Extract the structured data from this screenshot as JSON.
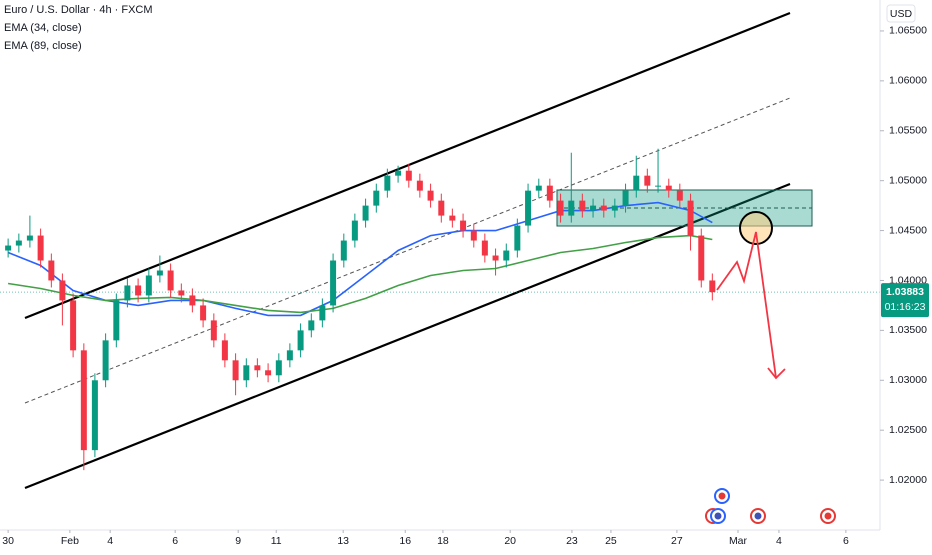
{
  "chart_data": {
    "type": "candlestick",
    "title": "Euro / U.S. Dollar · 4h · FXCM",
    "currency": "USD",
    "grid": false,
    "up_color": "#089981",
    "down_color": "#f23645",
    "xlim": [
      -0.25,
      26.83
    ],
    "ylim": [
      1.015,
      1.0681
    ],
    "xticks": [
      {
        "value": 0,
        "label": "30"
      },
      {
        "value": 1.9,
        "label": "Feb"
      },
      {
        "value": 3.14,
        "label": "4"
      },
      {
        "value": 5.14,
        "label": "6"
      },
      {
        "value": 7.08,
        "label": "9"
      },
      {
        "value": 8.25,
        "label": "11"
      },
      {
        "value": 10.31,
        "label": "13"
      },
      {
        "value": 12.22,
        "label": "16"
      },
      {
        "value": 13.38,
        "label": "18"
      },
      {
        "value": 15.45,
        "label": "20"
      },
      {
        "value": 17.35,
        "label": "23"
      },
      {
        "value": 18.55,
        "label": "25"
      },
      {
        "value": 20.58,
        "label": "27"
      },
      {
        "value": 22.46,
        "label": "Mar"
      },
      {
        "value": 23.72,
        "label": "4"
      },
      {
        "value": 25.78,
        "label": "6"
      }
    ],
    "yticks": [
      {
        "value": 1.02,
        "label": "1.02000"
      },
      {
        "value": 1.025,
        "label": "1.02500"
      },
      {
        "value": 1.03,
        "label": "1.03000"
      },
      {
        "value": 1.035,
        "label": "1.03500"
      },
      {
        "value": 1.04,
        "label": "1.04000"
      },
      {
        "value": 1.045,
        "label": "1.04500"
      },
      {
        "value": 1.05,
        "label": "1.05000"
      },
      {
        "value": 1.055,
        "label": "1.05500"
      },
      {
        "value": 1.06,
        "label": "1.06000"
      },
      {
        "value": 1.065,
        "label": "1.06500"
      }
    ],
    "x": [
      0,
      0.33,
      0.67,
      1,
      1.33,
      1.67,
      2,
      2.33,
      2.67,
      3,
      3.33,
      3.67,
      4,
      4.33,
      4.67,
      5,
      5.33,
      5.67,
      6,
      6.33,
      6.67,
      7,
      7.33,
      7.67,
      8,
      8.33,
      8.67,
      9,
      9.33,
      9.67,
      10,
      10.33,
      10.67,
      11,
      11.33,
      11.67,
      12,
      12.33,
      12.67,
      13,
      13.33,
      13.67,
      14,
      14.33,
      14.67,
      15,
      15.33,
      15.67,
      16,
      16.33,
      16.67,
      17,
      17.33,
      17.67,
      18,
      18.33,
      18.67,
      19,
      19.33,
      19.67,
      20,
      20.33,
      20.67,
      21,
      21.33,
      21.67
    ],
    "open": [
      1.043,
      1.0435,
      1.044,
      1.0445,
      1.042,
      1.04,
      1.038,
      1.033,
      1.023,
      1.03,
      1.034,
      1.038,
      1.0395,
      1.0385,
      1.0405,
      1.041,
      1.039,
      1.0385,
      1.0375,
      1.036,
      1.034,
      1.032,
      1.03,
      1.0315,
      1.031,
      1.0305,
      1.032,
      1.033,
      1.035,
      1.036,
      1.0375,
      1.042,
      1.044,
      1.046,
      1.0475,
      1.049,
      1.0505,
      1.051,
      1.05,
      1.049,
      1.048,
      1.0465,
      1.046,
      1.045,
      1.044,
      1.0425,
      1.042,
      1.043,
      1.0455,
      1.049,
      1.0495,
      1.048,
      1.0465,
      1.048,
      1.047,
      1.0475,
      1.047,
      1.0475,
      1.049,
      1.0505,
      1.0495,
      1.0495,
      1.049,
      1.048,
      1.0445,
      1.04
    ],
    "high": [
      1.0442,
      1.0447,
      1.0465,
      1.0452,
      1.0427,
      1.0407,
      1.0387,
      1.0337,
      1.0307,
      1.0347,
      1.0387,
      1.0402,
      1.0402,
      1.0412,
      1.0425,
      1.0417,
      1.0397,
      1.0392,
      1.0382,
      1.0367,
      1.0347,
      1.0327,
      1.0322,
      1.0322,
      1.0317,
      1.0327,
      1.0337,
      1.0357,
      1.0367,
      1.0382,
      1.0427,
      1.0447,
      1.0467,
      1.0482,
      1.0497,
      1.0512,
      1.0515,
      1.0517,
      1.0507,
      1.0497,
      1.0487,
      1.0472,
      1.0467,
      1.0457,
      1.0447,
      1.0432,
      1.0437,
      1.0462,
      1.0497,
      1.0502,
      1.0502,
      1.0487,
      1.0528,
      1.0487,
      1.0482,
      1.0482,
      1.0482,
      1.0497,
      1.0525,
      1.0512,
      1.0532,
      1.0502,
      1.0497,
      1.0487,
      1.0452,
      1.0407
    ],
    "low": [
      1.0423,
      1.0428,
      1.0433,
      1.0413,
      1.0393,
      1.0355,
      1.0323,
      1.021,
      1.0223,
      1.0293,
      1.0333,
      1.0373,
      1.0378,
      1.0378,
      1.0398,
      1.0383,
      1.0378,
      1.0368,
      1.0353,
      1.0333,
      1.0313,
      1.0285,
      1.0293,
      1.0303,
      1.0298,
      1.0298,
      1.0313,
      1.0323,
      1.0343,
      1.0353,
      1.0368,
      1.0413,
      1.0433,
      1.0453,
      1.0468,
      1.0483,
      1.0498,
      1.0493,
      1.0483,
      1.0473,
      1.0458,
      1.0453,
      1.0443,
      1.0433,
      1.0418,
      1.0405,
      1.0413,
      1.0423,
      1.0448,
      1.0483,
      1.0473,
      1.0458,
      1.0458,
      1.0463,
      1.0463,
      1.0463,
      1.0463,
      1.0468,
      1.0483,
      1.0488,
      1.0488,
      1.0483,
      1.0473,
      1.043,
      1.0393,
      1.038
    ],
    "close": [
      1.0435,
      1.044,
      1.0445,
      1.042,
      1.04,
      1.038,
      1.033,
      1.023,
      1.03,
      1.034,
      1.038,
      1.0395,
      1.0385,
      1.0405,
      1.041,
      1.039,
      1.0385,
      1.0375,
      1.036,
      1.034,
      1.032,
      1.03,
      1.0315,
      1.031,
      1.0305,
      1.032,
      1.033,
      1.035,
      1.036,
      1.0375,
      1.042,
      1.044,
      1.046,
      1.0475,
      1.049,
      1.0505,
      1.051,
      1.05,
      1.049,
      1.048,
      1.0465,
      1.046,
      1.045,
      1.044,
      1.0425,
      1.042,
      1.043,
      1.0455,
      1.049,
      1.0495,
      1.048,
      1.0465,
      1.048,
      1.047,
      1.0475,
      1.047,
      1.0475,
      1.049,
      1.0505,
      1.0495,
      1.0495,
      1.049,
      1.048,
      1.0445,
      1.04,
      1.03883
    ],
    "last_price": 1.03883,
    "countdown": "01:16:23",
    "ema": [
      {
        "name": "EMA (34, close)",
        "color": "#2962ff",
        "x": [
          0,
          1,
          2,
          3,
          4,
          5,
          6,
          7,
          8,
          9,
          10,
          11,
          12,
          13,
          14,
          15,
          16,
          17,
          18,
          19,
          20,
          21,
          21.67
        ],
        "values": [
          1.0428,
          1.0415,
          1.039,
          1.038,
          1.0375,
          1.038,
          1.038,
          1.0372,
          1.0365,
          1.0365,
          1.038,
          1.0405,
          1.043,
          1.0445,
          1.045,
          1.045,
          1.046,
          1.047,
          1.047,
          1.0475,
          1.0478,
          1.047,
          1.0458
        ]
      },
      {
        "name": "EMA (89, close)",
        "color": "#43a047",
        "x": [
          0,
          1,
          2,
          3,
          4,
          5,
          6,
          7,
          8,
          9,
          10,
          11,
          12,
          13,
          14,
          15,
          16,
          17,
          18,
          19,
          20,
          21,
          21.67
        ],
        "values": [
          1.0397,
          1.0392,
          1.0385,
          1.038,
          1.0382,
          1.0383,
          1.038,
          1.0375,
          1.037,
          1.0368,
          1.0372,
          1.0382,
          1.0395,
          1.0405,
          1.041,
          1.0412,
          1.042,
          1.0428,
          1.0432,
          1.0438,
          1.0443,
          1.0445,
          1.0441
        ]
      }
    ]
  }
}
